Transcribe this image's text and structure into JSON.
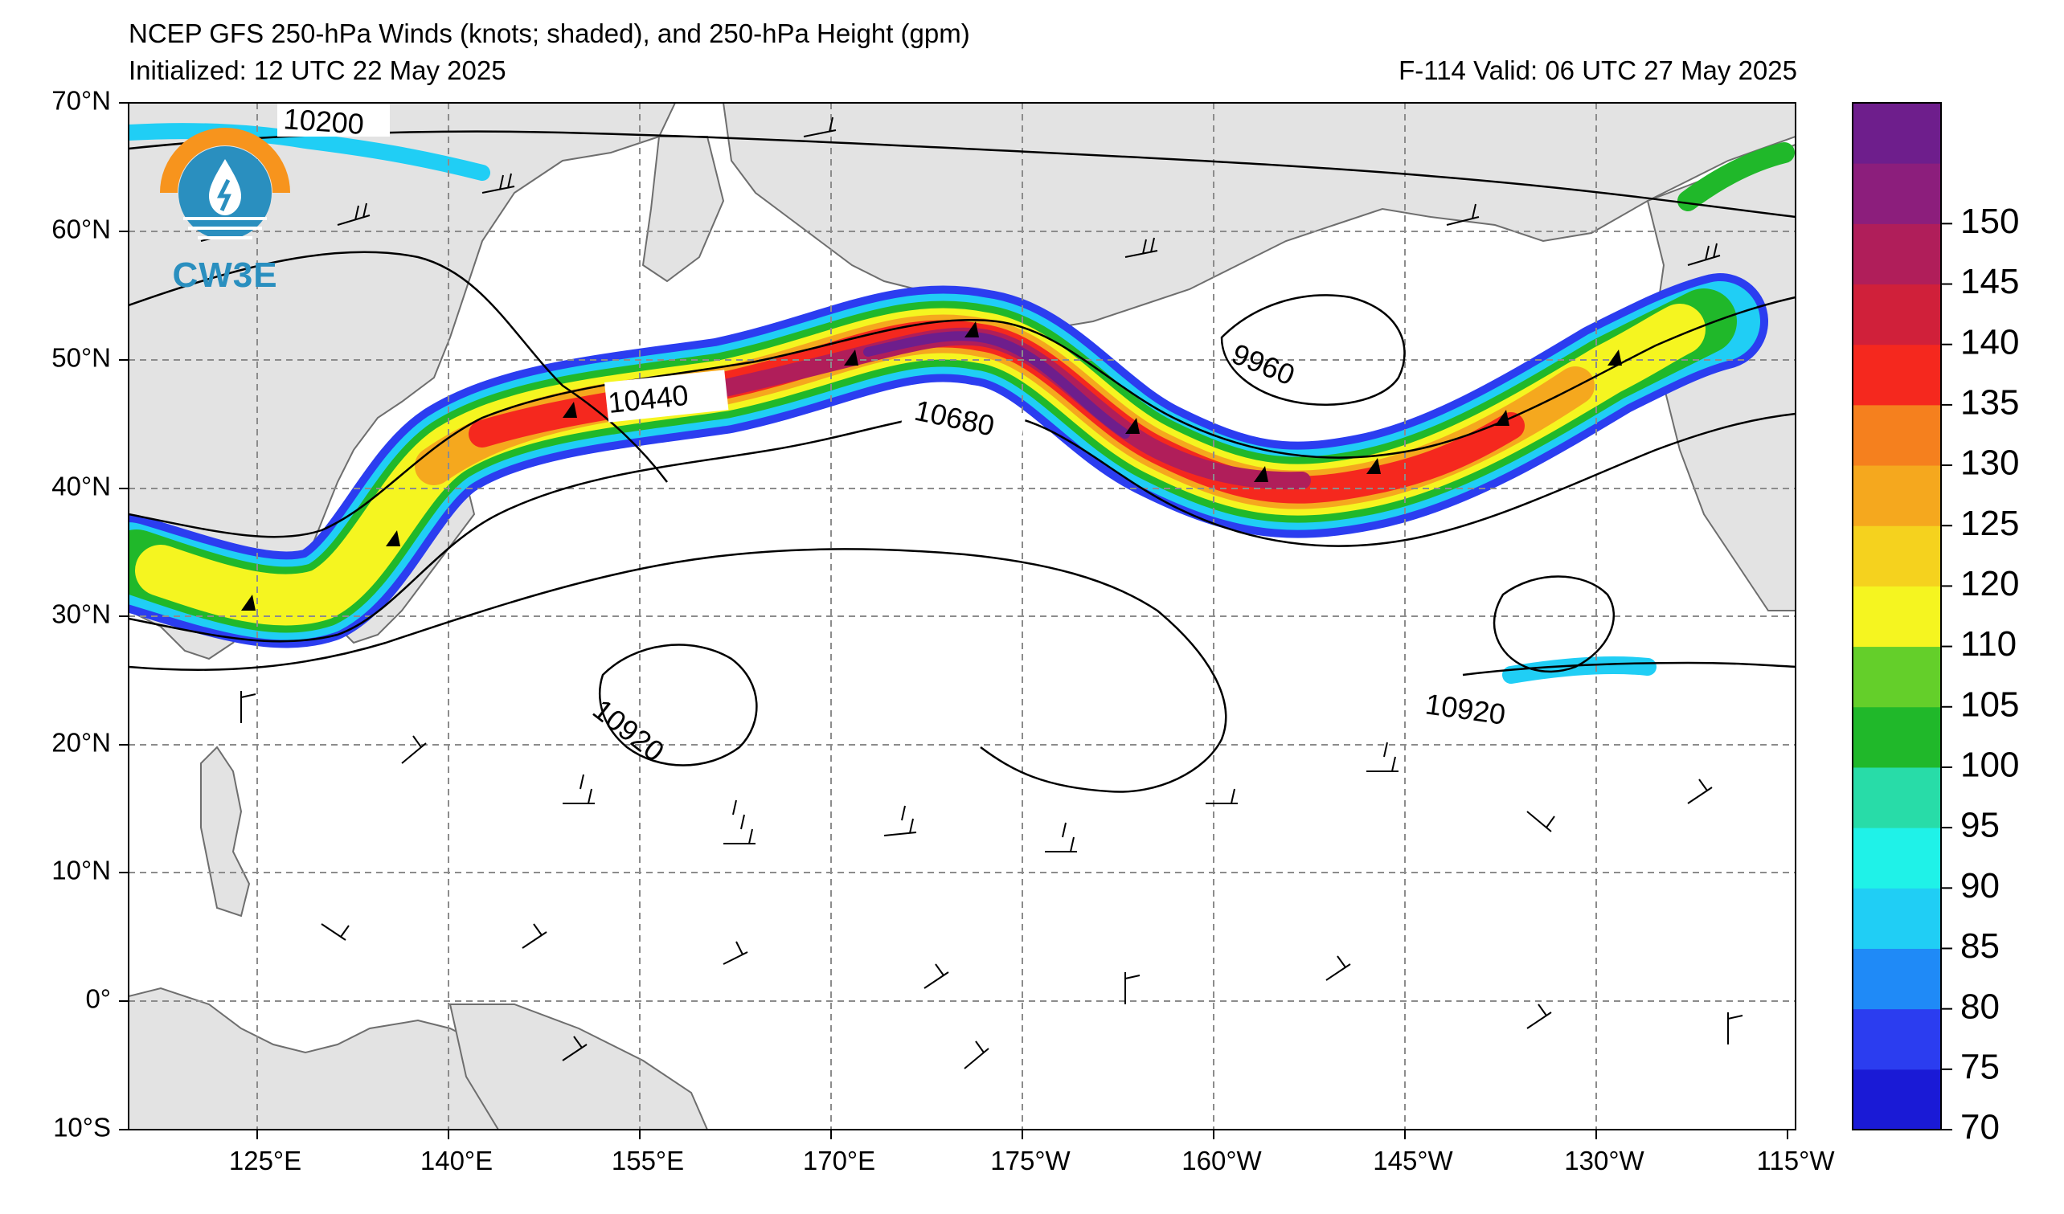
{
  "header": {
    "title": "NCEP GFS 250-hPa Winds (knots; shaded), and 250-hPa Height (gpm)",
    "initialized": "Initialized: 12 UTC 22 May 2025",
    "valid": "F-114  Valid: 06 UTC 27 May 2025"
  },
  "logo": {
    "text": "CW3E",
    "icon": "water-drop-sun-icon"
  },
  "axes": {
    "lat_labels": [
      "70°N",
      "60°N",
      "50°N",
      "40°N",
      "30°N",
      "20°N",
      "10°N",
      "0°",
      "10°S"
    ],
    "lon_labels": [
      "125°E",
      "140°E",
      "155°E",
      "170°E",
      "175°W",
      "160°W",
      "145°W",
      "130°W",
      "115°W"
    ]
  },
  "colorbar": {
    "ticks": [
      "70",
      "75",
      "80",
      "85",
      "90",
      "95",
      "100",
      "105",
      "110",
      "120",
      "125",
      "130",
      "135",
      "140",
      "145",
      "150"
    ],
    "colors": [
      "#1a1ad6",
      "#2b3df0",
      "#1f8af7",
      "#20cef5",
      "#1ff2e8",
      "#28dca8",
      "#20b82a",
      "#64cf2a",
      "#f5f520",
      "#f5d21e",
      "#f5a81e",
      "#f5801e",
      "#f5281e",
      "#d0203a",
      "#b01e5a",
      "#8c1e7c",
      "#6e1e8c"
    ]
  },
  "contour_labels": [
    "10200",
    "10440",
    "10680",
    "9960",
    "10920",
    "10920"
  ],
  "colors": {
    "land": "#e3e3e3",
    "coast": "#6e6e6e",
    "grid": "#8c8c8c",
    "contour": "#000000"
  }
}
